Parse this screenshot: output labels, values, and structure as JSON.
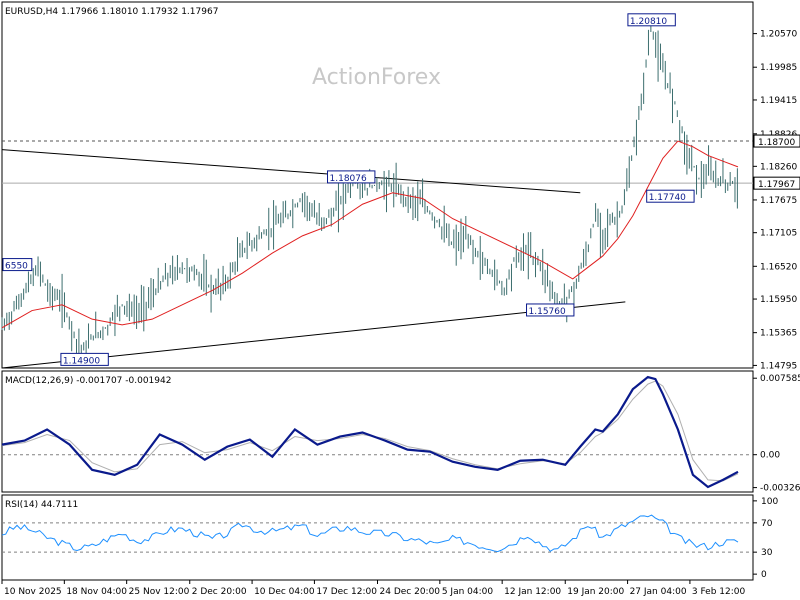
{
  "chart_data": [
    {
      "type": "line",
      "panel": "price",
      "title": "EURUSD,H4 1.17966 1.18010 1.17932 1.17967",
      "watermark": "ActionForex",
      "ylim": [
        1.1475,
        1.2112
      ],
      "y_ticks": [
        "1.20570",
        "1.19985",
        "1.19415",
        "1.18826",
        "1.18260",
        "1.17675",
        "1.17105",
        "1.16520",
        "1.15950",
        "1.15365",
        "1.14795"
      ],
      "level_line": {
        "label": "1.18700",
        "value": 1.187
      },
      "current_price": {
        "label": "1.17967",
        "value": 1.17967
      },
      "annotations": [
        {
          "label": "1.20810",
          "x": 86.5,
          "y": 1.2081
        },
        {
          "label": "1.18076",
          "x": 46.5,
          "y": 1.18076
        },
        {
          "label": "1.17740",
          "x": 89,
          "y": 1.1774
        },
        {
          "label": "1.15760",
          "x": 73,
          "y": 1.1576
        },
        {
          "label": "1.14900",
          "x": 11,
          "y": 1.149
        },
        {
          "label": "6550",
          "x": 1.5,
          "y": 1.1655
        }
      ],
      "trendlines": [
        {
          "from": [
            0,
            1.1855
          ],
          "to": [
            77,
            1.178
          ]
        },
        {
          "from": [
            0,
            1.1475
          ],
          "to": [
            83,
            1.159
          ]
        }
      ],
      "series": [
        {
          "key": "price",
          "color": "#3c6e6e",
          "x": [
            0,
            2,
            4,
            5,
            6,
            8,
            10,
            11,
            12,
            14,
            15,
            16,
            18,
            20,
            22,
            24,
            26,
            28,
            30,
            32,
            34,
            36,
            38,
            40,
            41,
            42,
            44,
            46,
            47,
            48,
            50,
            52,
            54,
            56,
            58,
            60,
            62,
            64,
            66,
            67,
            68,
            70,
            72,
            73,
            74,
            76,
            78,
            79,
            80,
            81,
            82,
            83,
            84,
            85,
            86,
            86.5,
            87,
            88,
            89,
            90,
            91,
            92,
            93,
            94,
            95,
            96,
            97,
            98
          ],
          "values": [
            1.1545,
            1.1585,
            1.163,
            1.165,
            1.161,
            1.159,
            1.152,
            1.1505,
            1.153,
            1.1545,
            1.157,
            1.1585,
            1.157,
            1.16,
            1.1635,
            1.165,
            1.164,
            1.161,
            1.1625,
            1.168,
            1.17,
            1.172,
            1.174,
            1.177,
            1.1755,
            1.173,
            1.174,
            1.179,
            1.18,
            1.1785,
            1.1795,
            1.179,
            1.177,
            1.176,
            1.173,
            1.169,
            1.17,
            1.166,
            1.163,
            1.161,
            1.166,
            1.168,
            1.165,
            1.162,
            1.1578,
            1.161,
            1.168,
            1.174,
            1.171,
            1.173,
            1.1735,
            1.177,
            1.185,
            1.1925,
            1.203,
            1.2075,
            1.2035,
            1.199,
            1.196,
            1.192,
            1.186,
            1.183,
            1.18,
            1.1815,
            1.1805,
            1.18,
            1.1795,
            1.1797
          ]
        },
        {
          "key": "ma",
          "color": "#e02020",
          "x": [
            0,
            4,
            8,
            12,
            16,
            20,
            24,
            28,
            32,
            36,
            40,
            44,
            48,
            52,
            56,
            60,
            64,
            68,
            72,
            76,
            78,
            80,
            82,
            84,
            86,
            88,
            90,
            92,
            94,
            96,
            98
          ],
          "values": [
            1.1545,
            1.1575,
            1.1585,
            1.156,
            1.155,
            1.156,
            1.1585,
            1.161,
            1.164,
            1.1675,
            1.1705,
            1.1725,
            1.176,
            1.178,
            1.177,
            1.1735,
            1.171,
            1.1685,
            1.166,
            1.163,
            1.165,
            1.167,
            1.17,
            1.174,
            1.179,
            1.184,
            1.187,
            1.186,
            1.1845,
            1.1835,
            1.1825
          ]
        }
      ]
    },
    {
      "type": "line",
      "panel": "macd",
      "title": "MACD(12,26,9) -0.001707 -0.001942",
      "ylim": [
        -0.0037,
        0.0083
      ],
      "y_ticks": [
        {
          "label": "0.007585",
          "value": 0.007585
        },
        {
          "label": "0.00",
          "value": 0.0
        },
        {
          "label": "-0.003264",
          "value": -0.003264
        }
      ],
      "zero_line": 0.0,
      "series": [
        {
          "key": "macd",
          "color": "#0a1a8c",
          "x": [
            0,
            3,
            6,
            9,
            12,
            15,
            18,
            21,
            24,
            27,
            30,
            33,
            36,
            39,
            42,
            45,
            48,
            51,
            54,
            57,
            60,
            63,
            66,
            69,
            72,
            75,
            77,
            79,
            80,
            82,
            84,
            86,
            87,
            88,
            90,
            92,
            94,
            96,
            98
          ],
          "values": [
            0.001,
            0.0014,
            0.0025,
            0.001,
            -0.0015,
            -0.002,
            -0.001,
            0.002,
            0.001,
            -0.0005,
            0.0008,
            0.0015,
            -0.0002,
            0.0025,
            0.001,
            0.0018,
            0.0022,
            0.0014,
            0.0005,
            0.0003,
            -0.0007,
            -0.0012,
            -0.0015,
            -0.0006,
            -0.0005,
            -0.001,
            0.0008,
            0.0025,
            0.0023,
            0.004,
            0.0065,
            0.0077,
            0.0075,
            0.006,
            0.0025,
            -0.002,
            -0.0032,
            -0.0025,
            -0.0017
          ]
        },
        {
          "key": "signal",
          "color": "#b0b0b0",
          "x": [
            0,
            3,
            6,
            9,
            12,
            15,
            18,
            21,
            24,
            27,
            30,
            33,
            36,
            39,
            42,
            45,
            48,
            51,
            54,
            57,
            60,
            63,
            66,
            69,
            72,
            75,
            77,
            79,
            80,
            82,
            84,
            86,
            87,
            88,
            90,
            92,
            94,
            96,
            98
          ],
          "values": [
            0.0009,
            0.0012,
            0.002,
            0.0014,
            -0.0008,
            -0.0017,
            -0.0014,
            0.001,
            0.0013,
            0.0002,
            0.0005,
            0.0012,
            0.0004,
            0.0018,
            0.0014,
            0.0016,
            0.002,
            0.0016,
            0.0008,
            0.0004,
            -0.0004,
            -0.001,
            -0.0014,
            -0.0009,
            -0.0006,
            -0.0009,
            0.0002,
            0.0018,
            0.0022,
            0.0035,
            0.0055,
            0.007,
            0.0073,
            0.0068,
            0.004,
            -0.0005,
            -0.0025,
            -0.0026,
            -0.0019
          ]
        }
      ]
    },
    {
      "type": "line",
      "panel": "rsi",
      "title": "RSI(14) 44.7111",
      "ylim": [
        0,
        100
      ],
      "y_ticks": [
        {
          "label": "100",
          "value": 100
        },
        {
          "label": "70",
          "value": 70
        },
        {
          "label": "30",
          "value": 30
        },
        {
          "label": "0",
          "value": 0
        }
      ],
      "levels": [
        70,
        30
      ],
      "series": [
        {
          "key": "rsi",
          "color": "#1e90ff",
          "x": [
            0,
            2,
            4,
            6,
            8,
            10,
            12,
            14,
            16,
            18,
            20,
            22,
            24,
            26,
            28,
            30,
            32,
            34,
            36,
            38,
            40,
            42,
            44,
            46,
            48,
            50,
            52,
            54,
            56,
            58,
            60,
            62,
            64,
            66,
            68,
            70,
            72,
            74,
            76,
            78,
            80,
            82,
            84,
            86,
            88,
            90,
            92,
            94,
            96,
            98
          ],
          "values": [
            55,
            65,
            60,
            50,
            42,
            35,
            38,
            48,
            56,
            45,
            50,
            60,
            62,
            55,
            48,
            55,
            68,
            60,
            58,
            62,
            66,
            52,
            60,
            64,
            58,
            56,
            54,
            48,
            45,
            40,
            48,
            44,
            38,
            35,
            42,
            55,
            40,
            32,
            48,
            68,
            50,
            62,
            72,
            80,
            70,
            50,
            40,
            38,
            44,
            44.7
          ]
        }
      ]
    }
  ],
  "x_axis": {
    "labels": [
      "10 Nov 2025",
      "18 Nov 04:00",
      "25 Nov 12:00",
      "2 Dec 20:00",
      "10 Dec 04:00",
      "17 Dec 12:00",
      "24 Dec 20:00",
      "5 Jan 04:00",
      "12 Jan 12:00",
      "19 Jan 20:00",
      "27 Jan 04:00",
      "3 Feb 12:00"
    ],
    "positions": [
      0,
      8.3,
      16.6,
      25,
      33.3,
      41.6,
      50,
      58.3,
      66.6,
      75,
      83.3,
      91.6
    ]
  },
  "colors": {
    "frame": "#000000",
    "grid_level": "#808080",
    "price_label_bg": "#ffffff",
    "watermark": "#c8c8c8"
  }
}
